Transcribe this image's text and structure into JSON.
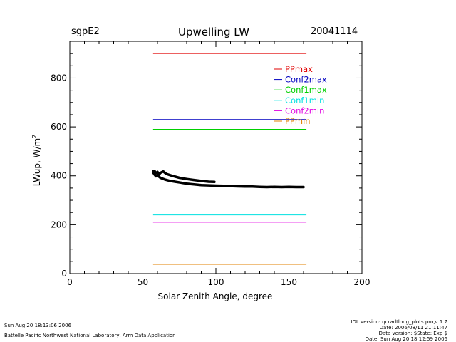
{
  "header": {
    "site": "sgpE2",
    "title": "Upwelling  LW",
    "date": "20041114"
  },
  "chart_data": {
    "type": "line",
    "title": "Upwelling  LW",
    "xlabel": "Solar  Zenith  Angle,  degree",
    "ylabel": "LWup,  W/m",
    "ylabel_sup": "2",
    "xlim": [
      0,
      200
    ],
    "ylim": [
      0,
      950
    ],
    "xticks": [
      0,
      50,
      100,
      150,
      200
    ],
    "yticks": [
      0,
      200,
      400,
      600,
      800
    ],
    "grid": false,
    "legend_position": "top-right",
    "series": [
      {
        "name": "PPmax",
        "color": "#e00000",
        "x": [
          57,
          162
        ],
        "y": [
          900,
          900
        ]
      },
      {
        "name": "Conf2max",
        "color": "#0000c0",
        "x": [
          57,
          162
        ],
        "y": [
          630,
          630
        ]
      },
      {
        "name": "Conf1max",
        "color": "#00d000",
        "x": [
          57,
          162
        ],
        "y": [
          590,
          590
        ]
      },
      {
        "name": "Conf1min",
        "color": "#00e0e0",
        "x": [
          57,
          162
        ],
        "y": [
          240,
          240
        ]
      },
      {
        "name": "Conf2min",
        "color": "#e000e0",
        "x": [
          57,
          162
        ],
        "y": [
          210,
          210
        ]
      },
      {
        "name": "PPmin",
        "color": "#e08000",
        "x": [
          57,
          162
        ],
        "y": [
          38,
          38
        ]
      }
    ],
    "observations": [
      {
        "name": "LWup observed (lower branch)",
        "color": "#000000",
        "x": [
          57,
          58,
          59,
          60,
          62,
          65,
          68,
          72,
          76,
          80,
          85,
          90,
          95,
          100,
          105,
          110,
          115,
          120,
          125,
          130,
          135,
          140,
          145,
          150,
          155,
          160
        ],
        "y": [
          418,
          405,
          398,
          402,
          392,
          385,
          380,
          376,
          372,
          368,
          365,
          362,
          361,
          360,
          359,
          358,
          357,
          356,
          356,
          355,
          354,
          355,
          354,
          355,
          354,
          354
        ]
      },
      {
        "name": "LWup observed (upper branch)",
        "color": "#000000",
        "x": [
          57,
          58,
          59,
          60,
          61,
          62,
          64,
          66,
          70,
          75,
          80,
          85,
          90,
          95,
          99
        ],
        "y": [
          412,
          420,
          410,
          416,
          405,
          412,
          418,
          408,
          400,
          392,
          387,
          383,
          379,
          376,
          375
        ]
      }
    ]
  },
  "footer": {
    "timestamp": "Sun Aug 20 18:13:06 2006",
    "lab": "Battelle Pacific Northwest National Laboratory, Arm Data Application",
    "idl": "IDL version: qcradtlong_plots.pro,v 1.7",
    "date_line": "Date: 2006/08/11 21:11:47",
    "data_version": "Data version: $State: Exp $",
    "data_date": "Date: Sun Aug 20 18:12:59 2006"
  }
}
